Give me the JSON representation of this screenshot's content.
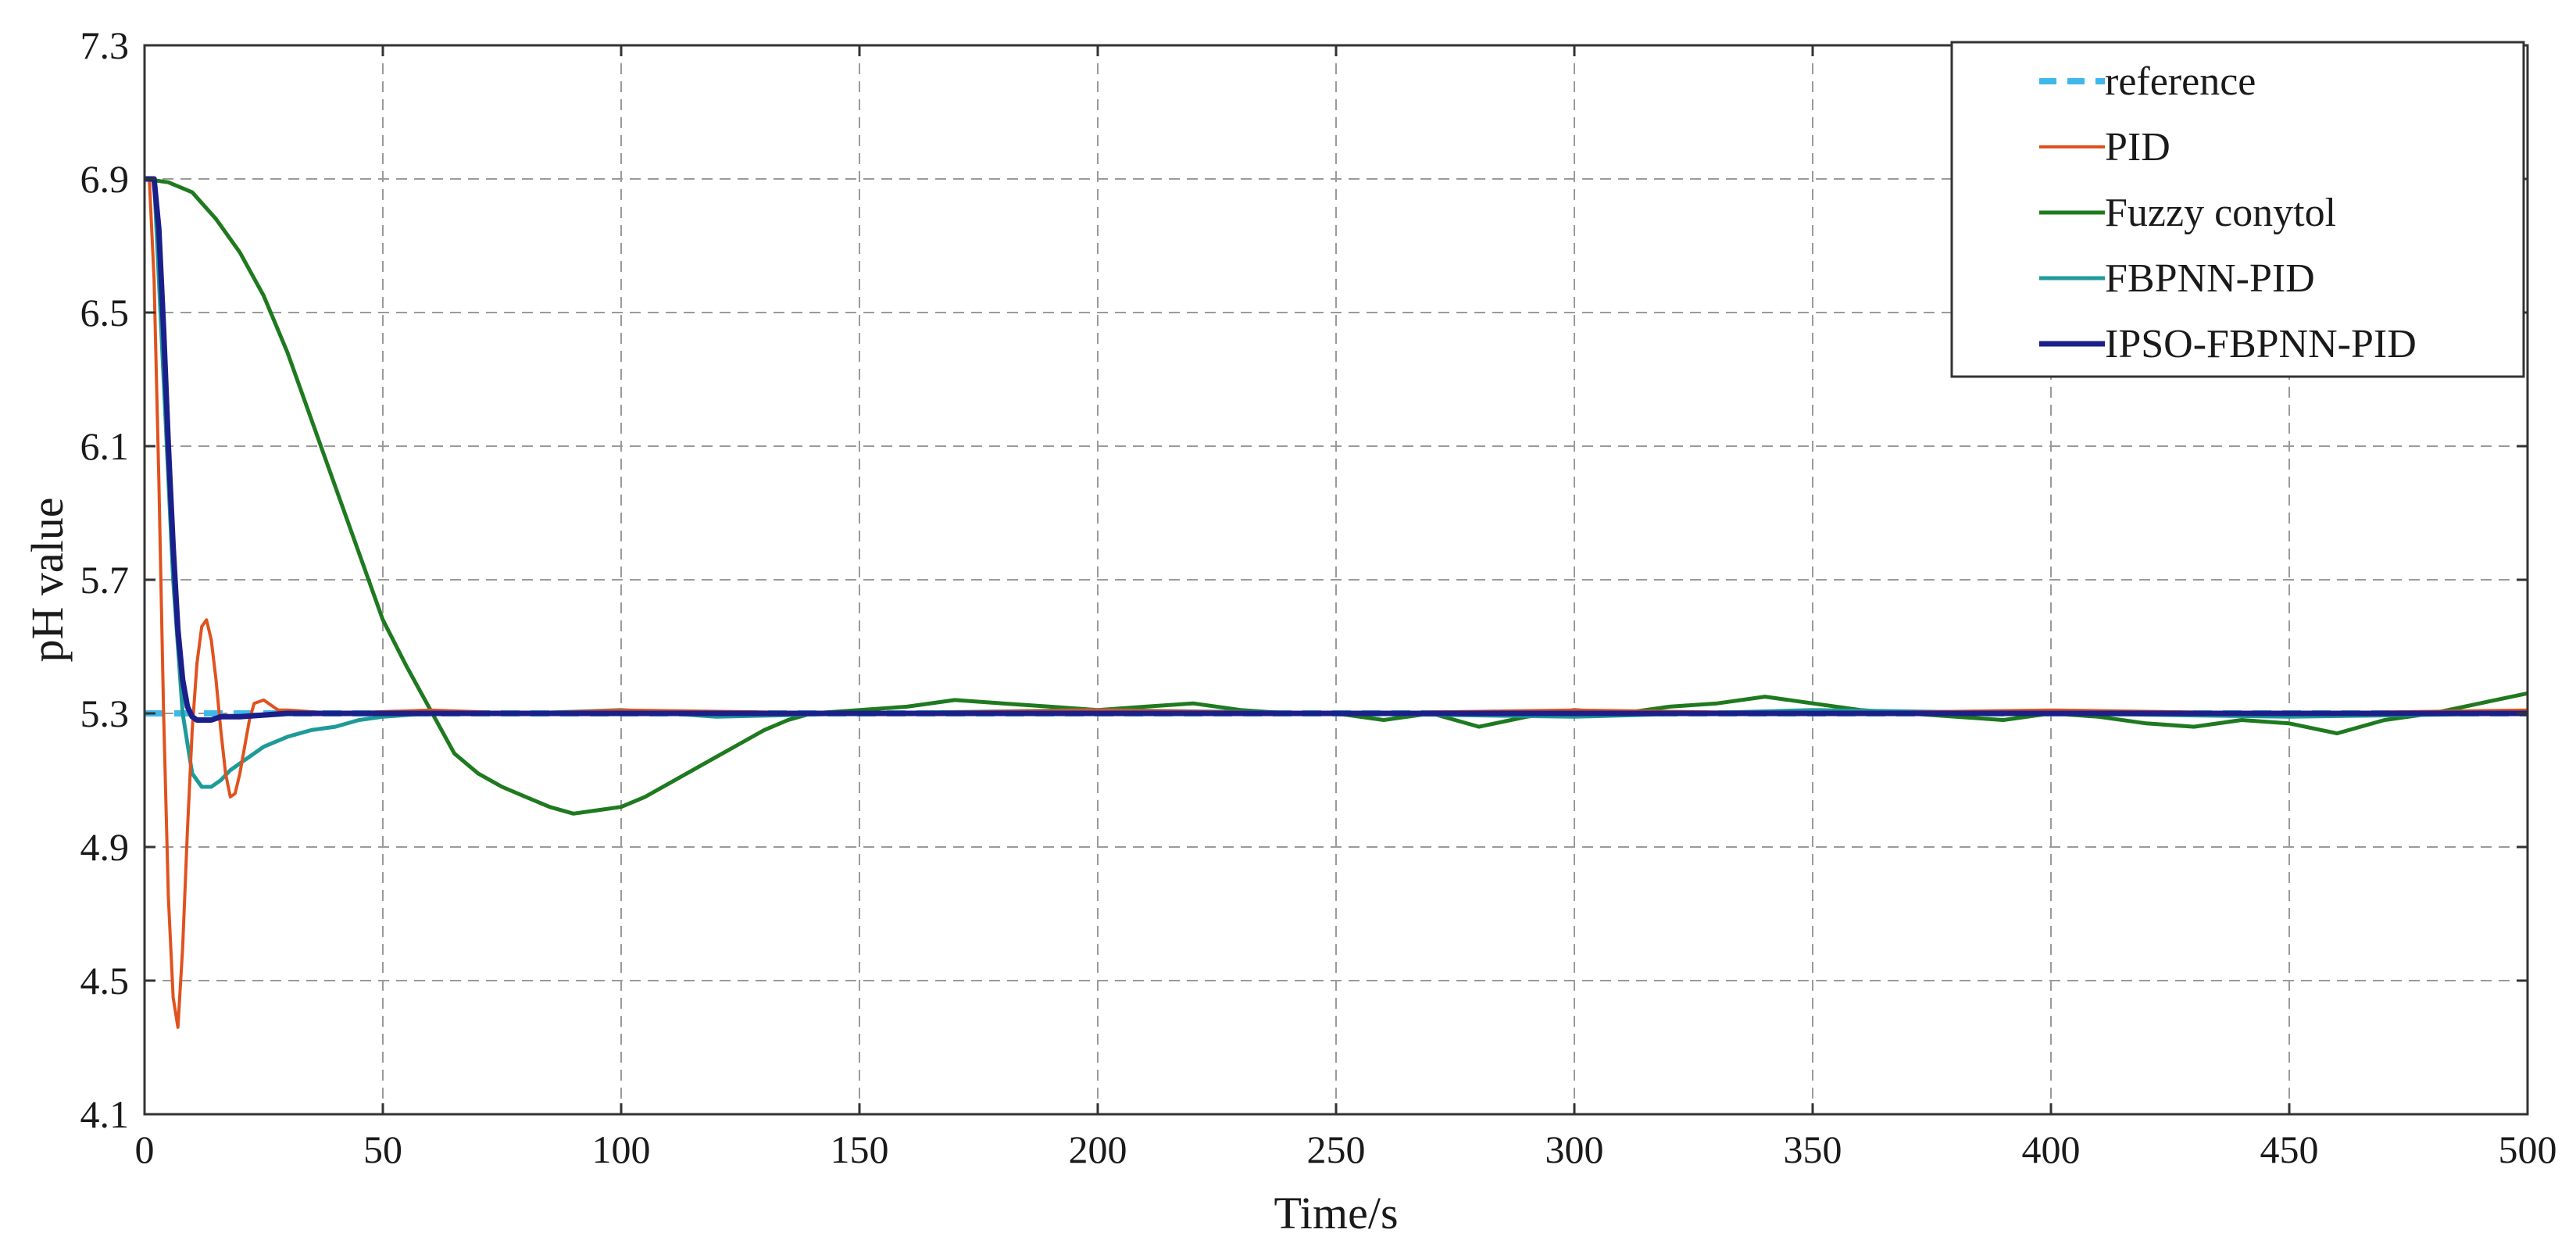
{
  "chart_data": {
    "type": "line",
    "xlabel": "Time/s",
    "ylabel": "pH value",
    "xlim": [
      0,
      500
    ],
    "ylim": [
      4.1,
      7.3
    ],
    "xticks": [
      0,
      50,
      100,
      150,
      200,
      250,
      300,
      350,
      400,
      450,
      500
    ],
    "yticks": [
      4.1,
      4.5,
      4.9,
      5.3,
      5.7,
      6.1,
      6.5,
      6.9,
      7.3
    ],
    "xtick_labels": [
      "0",
      "50",
      "100",
      "150",
      "200",
      "250",
      "300",
      "350",
      "400",
      "450",
      "500"
    ],
    "ytick_labels": [
      "4.1",
      "4.5",
      "4.9",
      "5.3",
      "5.7",
      "6.1",
      "6.5",
      "6.9",
      "7.3"
    ],
    "grid": true,
    "legend_position": "top-right",
    "series": [
      {
        "name": "reference",
        "color": "#3fb8e8",
        "dashed": true,
        "x": [
          0,
          500
        ],
        "y": [
          5.3,
          5.3
        ]
      },
      {
        "name": "PID",
        "color": "#e0521e",
        "dashed": false,
        "x": [
          0,
          1,
          2,
          3,
          4,
          5,
          6,
          7,
          8,
          9,
          10,
          11,
          12,
          13,
          14,
          15,
          16,
          17,
          18,
          19,
          20,
          21,
          22,
          23,
          25,
          28,
          30,
          40,
          60,
          80,
          100,
          150,
          200,
          250,
          300,
          350,
          400,
          450,
          500
        ],
        "y": [
          6.9,
          6.9,
          6.6,
          6.0,
          5.3,
          4.75,
          4.45,
          4.36,
          4.6,
          4.95,
          5.25,
          5.45,
          5.56,
          5.58,
          5.52,
          5.4,
          5.25,
          5.12,
          5.05,
          5.06,
          5.12,
          5.2,
          5.28,
          5.33,
          5.34,
          5.31,
          5.31,
          5.3,
          5.31,
          5.3,
          5.31,
          5.3,
          5.31,
          5.3,
          5.31,
          5.3,
          5.31,
          5.3,
          5.31
        ]
      },
      {
        "name": "Fuzzy conytol",
        "color": "#1f7a1f",
        "dashed": false,
        "x": [
          0,
          5,
          10,
          15,
          20,
          25,
          30,
          35,
          40,
          45,
          50,
          55,
          60,
          65,
          70,
          75,
          80,
          85,
          90,
          95,
          100,
          105,
          110,
          115,
          120,
          125,
          130,
          135,
          140,
          150,
          160,
          170,
          180,
          190,
          200,
          210,
          220,
          230,
          240,
          250,
          260,
          270,
          280,
          290,
          300,
          310,
          320,
          330,
          340,
          350,
          360,
          370,
          380,
          390,
          400,
          410,
          420,
          430,
          440,
          450,
          460,
          470,
          480,
          490,
          500
        ],
        "y": [
          6.9,
          6.89,
          6.86,
          6.78,
          6.68,
          6.55,
          6.38,
          6.18,
          5.98,
          5.78,
          5.58,
          5.44,
          5.31,
          5.18,
          5.12,
          5.08,
          5.05,
          5.02,
          5.0,
          5.01,
          5.02,
          5.05,
          5.09,
          5.13,
          5.17,
          5.21,
          5.25,
          5.28,
          5.3,
          5.31,
          5.32,
          5.34,
          5.33,
          5.32,
          5.31,
          5.32,
          5.33,
          5.31,
          5.3,
          5.3,
          5.28,
          5.3,
          5.26,
          5.29,
          5.31,
          5.3,
          5.32,
          5.33,
          5.35,
          5.33,
          5.31,
          5.3,
          5.29,
          5.28,
          5.3,
          5.29,
          5.27,
          5.26,
          5.28,
          5.27,
          5.24,
          5.28,
          5.3,
          5.33,
          5.36
        ]
      },
      {
        "name": "FBPNN-PID",
        "color": "#1f9a9a",
        "dashed": false,
        "x": [
          0,
          2,
          4,
          6,
          8,
          10,
          12,
          14,
          16,
          18,
          20,
          25,
          30,
          35,
          40,
          45,
          50,
          60,
          80,
          100,
          120,
          150,
          200,
          250,
          300,
          350,
          400,
          450,
          500
        ],
        "y": [
          6.9,
          6.9,
          6.3,
          5.7,
          5.3,
          5.12,
          5.08,
          5.08,
          5.1,
          5.13,
          5.15,
          5.2,
          5.23,
          5.25,
          5.26,
          5.28,
          5.29,
          5.3,
          5.3,
          5.31,
          5.29,
          5.3,
          5.31,
          5.3,
          5.29,
          5.31,
          5.3,
          5.29,
          5.3
        ]
      },
      {
        "name": "IPSO-FBPNN-PID",
        "color": "#1b1f8a",
        "dashed": false,
        "x": [
          0,
          2,
          3,
          4,
          5,
          6,
          7,
          8,
          9,
          10,
          11,
          12,
          14,
          16,
          20,
          30,
          40,
          50,
          60,
          80,
          100,
          150,
          200,
          250,
          300,
          350,
          400,
          450,
          500
        ],
        "y": [
          6.9,
          6.9,
          6.75,
          6.45,
          6.1,
          5.8,
          5.55,
          5.4,
          5.32,
          5.29,
          5.28,
          5.28,
          5.28,
          5.29,
          5.29,
          5.3,
          5.3,
          5.3,
          5.3,
          5.3,
          5.3,
          5.3,
          5.3,
          5.3,
          5.3,
          5.3,
          5.3,
          5.3,
          5.3
        ]
      }
    ]
  }
}
